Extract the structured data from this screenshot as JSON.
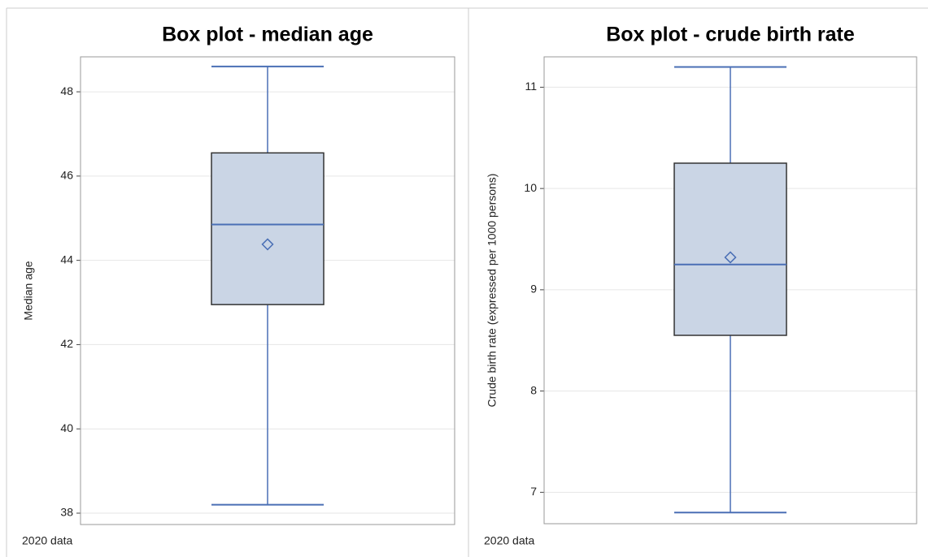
{
  "chart_data": [
    {
      "type": "box",
      "title": "Box plot - median age",
      "ylabel": "Median age",
      "footnote": "2020 data",
      "whisker_low": 38.2,
      "q1": 42.95,
      "median": 44.85,
      "q3": 46.55,
      "whisker_high": 48.6,
      "mean": 44.38,
      "ylim": [
        37.73,
        48.83
      ],
      "yticks": [
        38,
        40,
        42,
        44,
        46,
        48
      ],
      "grid": true,
      "box_color": "#cad5e5",
      "line_color": "#4a6fb5"
    },
    {
      "type": "box",
      "title": "Box plot - crude birth rate",
      "ylabel": "Crude birth rate (expressed per 1000 persons)",
      "footnote": "2020 data",
      "whisker_low": 6.8,
      "q1": 8.55,
      "median": 9.25,
      "q3": 10.25,
      "whisker_high": 11.2,
      "mean": 9.32,
      "ylim": [
        6.69,
        11.3
      ],
      "yticks": [
        7,
        8,
        9,
        10,
        11
      ],
      "grid": true,
      "box_color": "#cad5e5",
      "line_color": "#4a6fb5"
    }
  ]
}
